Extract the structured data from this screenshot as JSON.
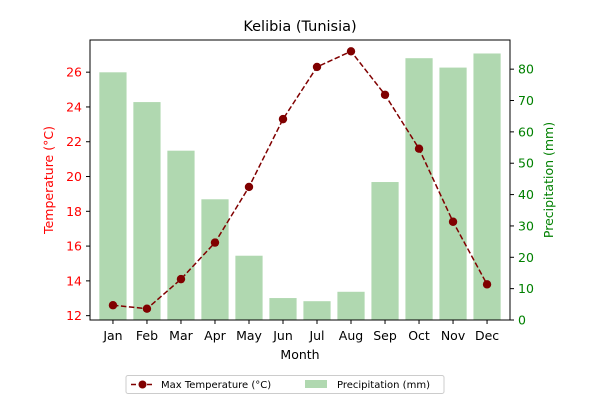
{
  "chart_data": {
    "type": "bar+line",
    "title": "Kelibia (Tunisia)",
    "xlabel": "Month",
    "categories": [
      "Jan",
      "Feb",
      "Mar",
      "Apr",
      "May",
      "Jun",
      "Jul",
      "Aug",
      "Sep",
      "Oct",
      "Nov",
      "Dec"
    ],
    "series": [
      {
        "name": "Max Temperature (°C)",
        "type": "line",
        "axis": "left",
        "values": [
          12.6,
          12.4,
          14.1,
          16.2,
          19.4,
          23.3,
          26.3,
          27.2,
          24.7,
          21.6,
          17.4,
          13.8
        ],
        "color": "#800000",
        "linestyle": "dashed",
        "marker": "circle"
      },
      {
        "name": "Precipitation (mm)",
        "type": "bar",
        "axis": "right",
        "values": [
          79,
          69.5,
          54,
          38.5,
          20.5,
          7,
          6,
          9,
          44,
          83.5,
          80.5,
          85
        ],
        "color": "#b0d8b0"
      }
    ],
    "y_left": {
      "label": "Temperature (°C)",
      "color": "#ff0000",
      "ylim": [
        11.75,
        27.85
      ],
      "ticks": [
        "12",
        "14",
        "16",
        "18",
        "20",
        "22",
        "24",
        "26"
      ]
    },
    "y_right": {
      "label": "Precipitation (mm)",
      "color": "#008000",
      "ylim": [
        0,
        89.3
      ],
      "ticks": [
        "0",
        "10",
        "20",
        "30",
        "40",
        "50",
        "60",
        "70",
        "80"
      ]
    },
    "legend_position": "bottom-center",
    "grid": false
  }
}
